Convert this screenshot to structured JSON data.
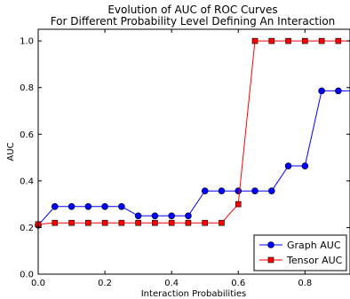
{
  "chart_data": {
    "type": "line",
    "title_lines": [
      "Evolution of AUC of ROC Curves",
      "For Different Probability Level Defining An Interaction"
    ],
    "xlabel": "Interaction Probabilities",
    "ylabel": "AUC",
    "xlim": [
      0.0,
      0.935
    ],
    "ylim": [
      0.0,
      1.05
    ],
    "xticks": [
      0.0,
      0.2,
      0.4,
      0.6,
      0.8
    ],
    "xtick_labels": [
      "0.0",
      "0.2",
      "0.4",
      "0.6",
      "0.8"
    ],
    "yticks": [
      0.0,
      0.2,
      0.4,
      0.6,
      0.8,
      1.0
    ],
    "ytick_labels": [
      "0.0",
      "0.2",
      "0.4",
      "0.6",
      "0.8",
      "1.0"
    ],
    "grid": false,
    "legend_position": "bottom-right",
    "x": [
      0.0,
      0.05,
      0.1,
      0.15,
      0.2,
      0.25,
      0.3,
      0.35,
      0.4,
      0.45,
      0.5,
      0.55,
      0.6,
      0.65,
      0.7,
      0.75,
      0.8,
      0.85,
      0.9
    ],
    "series": [
      {
        "name": "Graph AUC",
        "color": "#0000ff",
        "marker": "circle",
        "values": [
          0.21,
          0.29,
          0.29,
          0.29,
          0.29,
          0.29,
          0.25,
          0.25,
          0.25,
          0.25,
          0.357,
          0.357,
          0.357,
          0.357,
          0.357,
          0.464,
          0.464,
          0.786,
          0.786
        ],
        "extends_to_edge": true
      },
      {
        "name": "Tensor AUC",
        "color": "#ff0000",
        "marker": "square",
        "values": [
          0.214,
          0.22,
          0.22,
          0.22,
          0.22,
          0.22,
          0.22,
          0.22,
          0.22,
          0.22,
          0.22,
          0.22,
          0.3,
          1.0,
          1.0,
          1.0,
          1.0,
          1.0,
          1.0
        ],
        "extends_to_edge": true
      }
    ]
  }
}
